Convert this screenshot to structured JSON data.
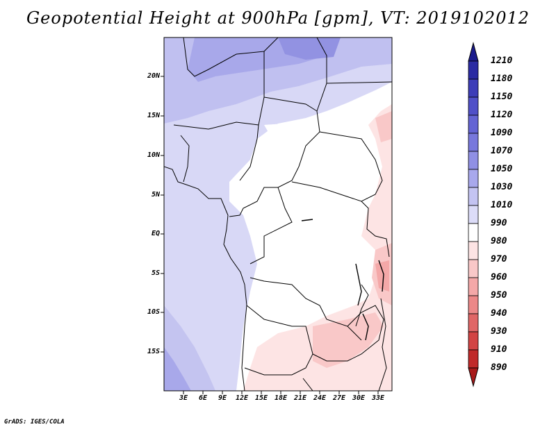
{
  "title": "Geopotential Height at 900hPa [gpm], VT: 2019102012",
  "credit": "GrADS: IGES/COLA",
  "y_axis_labels": [
    "20N",
    "15N",
    "10N",
    "5N",
    "EQ",
    "5S",
    "10S",
    "15S"
  ],
  "x_axis_labels": [
    "3E",
    "6E",
    "9E",
    "12E",
    "15E",
    "18E",
    "21E",
    "24E",
    "27E",
    "30E",
    "33E"
  ],
  "colorbar": {
    "labels": [
      "1210",
      "1180",
      "1150",
      "1120",
      "1090",
      "1070",
      "1050",
      "1030",
      "1010",
      "990",
      "980",
      "970",
      "960",
      "950",
      "940",
      "930",
      "910",
      "890"
    ],
    "colors": [
      "#1a1a8c",
      "#2b2ba3",
      "#3d3db8",
      "#5050c8",
      "#6464d4",
      "#7878dc",
      "#9090e4",
      "#a8a8ec",
      "#c4c4f2",
      "#dcdcf8",
      "#ffffff",
      "#fde4e4",
      "#f9c8c8",
      "#f4a8a8",
      "#ec8888",
      "#e06666",
      "#d24444",
      "#c02a2a",
      "#a81a1a"
    ]
  }
}
